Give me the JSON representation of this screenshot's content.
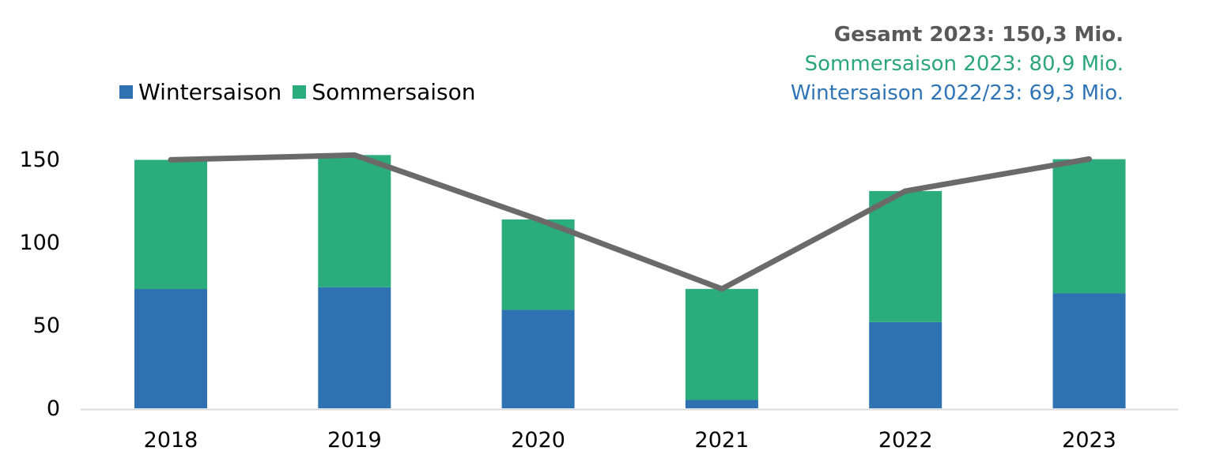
{
  "annotations": [
    {
      "text": "Gesamt 2023: 150,3 Mio.",
      "color": "#595959",
      "bold": true
    },
    {
      "text": "Sommersaison 2023: 80,9 Mio.",
      "color": "#2AA57C",
      "bold": false
    },
    {
      "text": "Wintersaison 2022/23: 69,3 Mio.",
      "color": "#2E74B6",
      "bold": false
    }
  ],
  "chart_data": {
    "type": "bar",
    "stacked": true,
    "title": "",
    "xlabel": "",
    "ylabel": "",
    "categories": [
      "2018",
      "2019",
      "2020",
      "2021",
      "2022",
      "2023"
    ],
    "series": [
      {
        "name": "Wintersaison",
        "type": "bar",
        "color": "#2E72B2",
        "values": [
          71.9,
          73.0,
          59.3,
          5.0,
          52.0,
          69.3
        ]
      },
      {
        "name": "Sommersaison",
        "type": "bar",
        "color": "#2BAC7D",
        "values": [
          77.9,
          79.7,
          54.6,
          67.0,
          79.0,
          80.9
        ]
      },
      {
        "name": "Gesamt",
        "type": "line",
        "color": "#6A6A6A",
        "values": [
          149.8,
          152.7,
          113.9,
          72.0,
          131.0,
          150.3
        ]
      }
    ],
    "unit": "Mio.",
    "ylim": [
      0,
      160
    ],
    "yticks": [
      0,
      50,
      100,
      150
    ],
    "grid": false,
    "legend_position": "top-left",
    "axis_color": "#D9D9D9",
    "tick_label_color": "#000000"
  }
}
